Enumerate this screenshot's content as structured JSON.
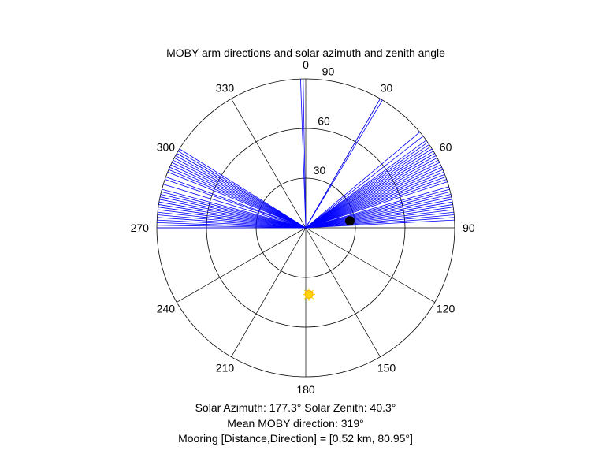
{
  "chart_data": {
    "type": "polar",
    "title": "MOBY arm directions and solar azimuth and zenith angle",
    "theta_zero": "top",
    "theta_direction": "clockwise",
    "theta_ticks": [
      0,
      30,
      60,
      90,
      120,
      150,
      180,
      210,
      240,
      270,
      300,
      330
    ],
    "theta_tick_labels": [
      "0",
      "30",
      "60",
      "90",
      "120",
      "150",
      "180",
      "210",
      "240",
      "270",
      "300",
      "330"
    ],
    "r_lim": [
      0,
      90
    ],
    "r_ticks": [
      30,
      60,
      90
    ],
    "r_tick_labels": [
      "30",
      "60",
      "90"
    ],
    "r_tick_label_angle_deg": 5,
    "grid": true,
    "arm_color": "#0000ff",
    "arm_length": 90,
    "arm_directions_deg": [
      358,
      359,
      30,
      31,
      50,
      52,
      54,
      55,
      56,
      57,
      58,
      59,
      60,
      61,
      62,
      63,
      64,
      65,
      66,
      67,
      68,
      69,
      70,
      71,
      72,
      74,
      75,
      76,
      77,
      78,
      79,
      80,
      81,
      82,
      83,
      84,
      85,
      86,
      87,
      270,
      271,
      272,
      273,
      274,
      275,
      276,
      277,
      278,
      279,
      280,
      281,
      282,
      283,
      284,
      285,
      287,
      289,
      290,
      292,
      293,
      294,
      295,
      296,
      297,
      298,
      299,
      300,
      301,
      302
    ],
    "mooring_marker": {
      "direction_deg": 80.95,
      "r": 27,
      "color": "#000000"
    },
    "sun_marker": {
      "azimuth_deg": 177.3,
      "zenith_deg": 40.3,
      "color": "#ffd700"
    }
  },
  "captions": {
    "line1": "Solar Azimuth: 177.3°    Solar Zenith: 40.3°",
    "line2": "Mean MOBY direction: 319°",
    "line3": "Mooring [Distance,Direction] = [0.52 km, 80.95°]"
  }
}
